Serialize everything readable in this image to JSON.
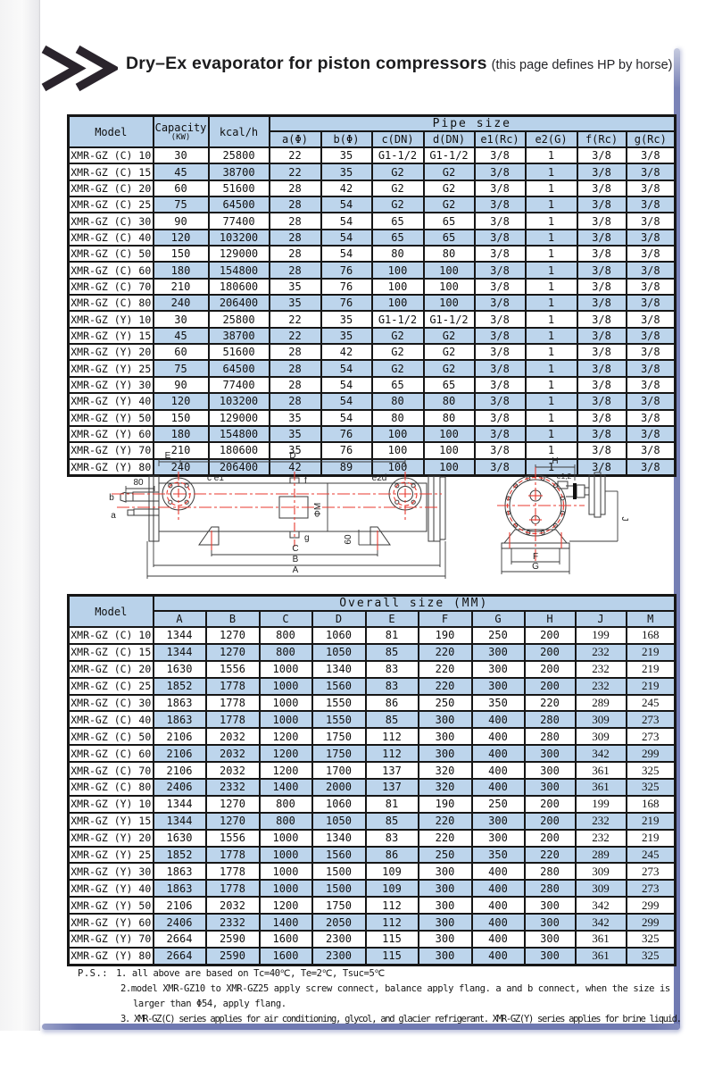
{
  "page": {
    "title": "Dry–Ex evaporator for piston compressors",
    "title_suffix": "(this page defines HP by horse)"
  },
  "pipe_table": {
    "headers": {
      "model": "Model",
      "capacity": "Capacity",
      "capacity_unit": "(KW)",
      "kcal": "kcal/h",
      "group": "Pipe size",
      "cols": [
        "a(Φ)",
        "b(Φ)",
        "c(DN)",
        "d(DN)",
        "e1(Rc)",
        "e2(G)",
        "f(Rc)",
        "g(Rc)"
      ]
    },
    "rows": [
      [
        "XMR-GZ (C) 10",
        "30",
        "25800",
        "22",
        "35",
        "G1-1/2",
        "G1-1/2",
        "3/8",
        "1",
        "3/8",
        "3/8"
      ],
      [
        "XMR-GZ (C) 15",
        "45",
        "38700",
        "22",
        "35",
        "G2",
        "G2",
        "3/8",
        "1",
        "3/8",
        "3/8"
      ],
      [
        "XMR-GZ (C) 20",
        "60",
        "51600",
        "28",
        "42",
        "G2",
        "G2",
        "3/8",
        "1",
        "3/8",
        "3/8"
      ],
      [
        "XMR-GZ (C) 25",
        "75",
        "64500",
        "28",
        "54",
        "G2",
        "G2",
        "3/8",
        "1",
        "3/8",
        "3/8"
      ],
      [
        "XMR-GZ (C) 30",
        "90",
        "77400",
        "28",
        "54",
        "65",
        "65",
        "3/8",
        "1",
        "3/8",
        "3/8"
      ],
      [
        "XMR-GZ (C) 40",
        "120",
        "103200",
        "28",
        "54",
        "65",
        "65",
        "3/8",
        "1",
        "3/8",
        "3/8"
      ],
      [
        "XMR-GZ (C) 50",
        "150",
        "129000",
        "28",
        "54",
        "80",
        "80",
        "3/8",
        "1",
        "3/8",
        "3/8"
      ],
      [
        "XMR-GZ (C) 60",
        "180",
        "154800",
        "28",
        "76",
        "100",
        "100",
        "3/8",
        "1",
        "3/8",
        "3/8"
      ],
      [
        "XMR-GZ (C) 70",
        "210",
        "180600",
        "35",
        "76",
        "100",
        "100",
        "3/8",
        "1",
        "3/8",
        "3/8"
      ],
      [
        "XMR-GZ (C) 80",
        "240",
        "206400",
        "35",
        "76",
        "100",
        "100",
        "3/8",
        "1",
        "3/8",
        "3/8"
      ],
      [
        "XMR-GZ (Y) 10",
        "30",
        "25800",
        "22",
        "35",
        "G1-1/2",
        "G1-1/2",
        "3/8",
        "1",
        "3/8",
        "3/8"
      ],
      [
        "XMR-GZ (Y) 15",
        "45",
        "38700",
        "22",
        "35",
        "G2",
        "G2",
        "3/8",
        "1",
        "3/8",
        "3/8"
      ],
      [
        "XMR-GZ (Y) 20",
        "60",
        "51600",
        "28",
        "42",
        "G2",
        "G2",
        "3/8",
        "1",
        "3/8",
        "3/8"
      ],
      [
        "XMR-GZ (Y) 25",
        "75",
        "64500",
        "28",
        "54",
        "G2",
        "G2",
        "3/8",
        "1",
        "3/8",
        "3/8"
      ],
      [
        "XMR-GZ (Y) 30",
        "90",
        "77400",
        "28",
        "54",
        "65",
        "65",
        "3/8",
        "1",
        "3/8",
        "3/8"
      ],
      [
        "XMR-GZ (Y) 40",
        "120",
        "103200",
        "28",
        "54",
        "80",
        "80",
        "3/8",
        "1",
        "3/8",
        "3/8"
      ],
      [
        "XMR-GZ (Y) 50",
        "150",
        "129000",
        "35",
        "54",
        "80",
        "80",
        "3/8",
        "1",
        "3/8",
        "3/8"
      ],
      [
        "XMR-GZ (Y) 60",
        "180",
        "154800",
        "35",
        "76",
        "100",
        "100",
        "3/8",
        "1",
        "3/8",
        "3/8"
      ],
      [
        "XMR-GZ (Y) 70",
        "210",
        "180600",
        "35",
        "76",
        "100",
        "100",
        "3/8",
        "1",
        "3/8",
        "3/8"
      ],
      [
        "XMR-GZ (Y) 80",
        "240",
        "206400",
        "42",
        "89",
        "100",
        "100",
        "3/8",
        "1",
        "3/8",
        "3/8"
      ]
    ]
  },
  "size_table": {
    "headers": {
      "model": "Model",
      "group": "Overall size (MM)",
      "cols": [
        "A",
        "B",
        "C",
        "D",
        "E",
        "F",
        "G",
        "H",
        "J",
        "M"
      ]
    },
    "rows": [
      [
        "XMR-GZ (C) 10",
        "1344",
        "1270",
        "800",
        "1060",
        "81",
        "190",
        "250",
        "200",
        "199",
        "168"
      ],
      [
        "XMR-GZ (C) 15",
        "1344",
        "1270",
        "800",
        "1050",
        "85",
        "220",
        "300",
        "200",
        "232",
        "219"
      ],
      [
        "XMR-GZ (C) 20",
        "1630",
        "1556",
        "1000",
        "1340",
        "83",
        "220",
        "300",
        "200",
        "232",
        "219"
      ],
      [
        "XMR-GZ (C) 25",
        "1852",
        "1778",
        "1000",
        "1560",
        "83",
        "220",
        "300",
        "200",
        "232",
        "219"
      ],
      [
        "XMR-GZ (C) 30",
        "1863",
        "1778",
        "1000",
        "1550",
        "86",
        "250",
        "350",
        "220",
        "289",
        "245"
      ],
      [
        "XMR-GZ (C) 40",
        "1863",
        "1778",
        "1000",
        "1550",
        "85",
        "300",
        "400",
        "280",
        "309",
        "273"
      ],
      [
        "XMR-GZ (C) 50",
        "2106",
        "2032",
        "1200",
        "1750",
        "112",
        "300",
        "400",
        "280",
        "309",
        "273"
      ],
      [
        "XMR-GZ (C) 60",
        "2106",
        "2032",
        "1200",
        "1750",
        "112",
        "300",
        "400",
        "300",
        "342",
        "299"
      ],
      [
        "XMR-GZ (C) 70",
        "2106",
        "2032",
        "1200",
        "1700",
        "137",
        "320",
        "400",
        "300",
        "361",
        "325"
      ],
      [
        "XMR-GZ (C) 80",
        "2406",
        "2332",
        "1400",
        "2000",
        "137",
        "320",
        "400",
        "300",
        "361",
        "325"
      ],
      [
        "XMR-GZ (Y) 10",
        "1344",
        "1270",
        "800",
        "1060",
        "81",
        "190",
        "250",
        "200",
        "199",
        "168"
      ],
      [
        "XMR-GZ (Y) 15",
        "1344",
        "1270",
        "800",
        "1050",
        "85",
        "220",
        "300",
        "200",
        "232",
        "219"
      ],
      [
        "XMR-GZ (Y) 20",
        "1630",
        "1556",
        "1000",
        "1340",
        "83",
        "220",
        "300",
        "200",
        "232",
        "219"
      ],
      [
        "XMR-GZ (Y) 25",
        "1852",
        "1778",
        "1000",
        "1560",
        "86",
        "250",
        "350",
        "220",
        "289",
        "245"
      ],
      [
        "XMR-GZ (Y) 30",
        "1863",
        "1778",
        "1000",
        "1500",
        "109",
        "300",
        "400",
        "280",
        "309",
        "273"
      ],
      [
        "XMR-GZ (Y) 40",
        "1863",
        "1778",
        "1000",
        "1500",
        "109",
        "300",
        "400",
        "280",
        "309",
        "273"
      ],
      [
        "XMR-GZ (Y) 50",
        "2106",
        "2032",
        "1200",
        "1750",
        "112",
        "300",
        "400",
        "300",
        "342",
        "299"
      ],
      [
        "XMR-GZ (Y) 60",
        "2406",
        "2332",
        "1400",
        "2050",
        "112",
        "300",
        "400",
        "300",
        "342",
        "299"
      ],
      [
        "XMR-GZ (Y) 70",
        "2664",
        "2590",
        "1600",
        "2300",
        "115",
        "300",
        "400",
        "300",
        "361",
        "325"
      ],
      [
        "XMR-GZ (Y) 80",
        "2664",
        "2590",
        "1600",
        "2300",
        "115",
        "300",
        "400",
        "300",
        "361",
        "325"
      ]
    ]
  },
  "diagram": {
    "labels": {
      "E": "E",
      "D": "D",
      "ce1": "c e1",
      "f": "f",
      "e2d": "e2d",
      "b": "b",
      "a": "a",
      "d80": "80",
      "phiM": "ΦM",
      "g": "g",
      "d60": "60",
      "C": "C",
      "B": "B",
      "A": "A",
      "H": "H",
      "e12": "e1,2",
      "J": "J",
      "F": "F",
      "G": "G"
    }
  },
  "notes": {
    "ps": "P.S.:",
    "line1": "1. all above are based on Tc=40℃, Te=2℃, Tsuc=5℃",
    "line2": "2.model XMR-GZ10 to XMR-GZ25 apply screw connect, balance apply flang. a and b connect, when the size is",
    "line3": "larger than Φ54, apply flang.",
    "line4": "3. XMR-GZ(C) series applies for air conditioning, glycol, and glacier refrigerant. XMR-GZ(Y) series applies for brine liquid."
  },
  "colors": {
    "header_blue": "#b9d2ea",
    "alt_row_blue": "#bdd5ec",
    "frame_blue": "#6f79b1",
    "centerline_red": "#e8392f",
    "line_black": "#3a3a3a"
  }
}
